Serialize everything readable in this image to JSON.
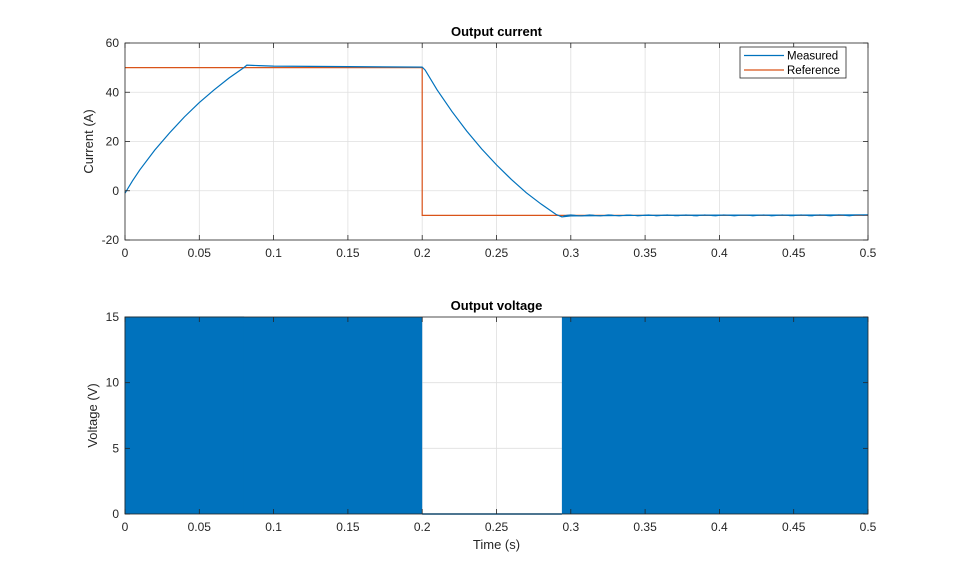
{
  "chart_data": [
    {
      "type": "line",
      "title": "Output current",
      "xlabel": "",
      "ylabel": "Current (A)",
      "xlim": [
        0,
        0.5
      ],
      "ylim": [
        -20,
        60
      ],
      "xticks": [
        0,
        0.05,
        0.1,
        0.15,
        0.2,
        0.25,
        0.3,
        0.35,
        0.4,
        0.45,
        0.5
      ],
      "xtick_labels": [
        "0",
        "0.05",
        "0.1",
        "0.15",
        "0.2",
        "0.25",
        "0.3",
        "0.35",
        "0.4",
        "0.45",
        "0.5"
      ],
      "yticks": [
        -20,
        0,
        20,
        40,
        60
      ],
      "ytick_labels": [
        "-20",
        "0",
        "20",
        "40",
        "60"
      ],
      "grid": true,
      "legend": "top-right",
      "series": [
        {
          "name": "Measured",
          "color": "#0072BD",
          "x": [
            0,
            0.005,
            0.01,
            0.02,
            0.03,
            0.04,
            0.05,
            0.06,
            0.07,
            0.08,
            0.082,
            0.09,
            0.1,
            0.15,
            0.2,
            0.202,
            0.21,
            0.22,
            0.23,
            0.24,
            0.25,
            0.26,
            0.27,
            0.28,
            0.29,
            0.294,
            0.3,
            0.35,
            0.4,
            0.45,
            0.5
          ],
          "y": [
            -1,
            4,
            8.5,
            16.5,
            23.5,
            30,
            35.8,
            41,
            45.8,
            50,
            51,
            50.8,
            50.6,
            50.4,
            50.2,
            49,
            41,
            32.2,
            24.2,
            17,
            10.5,
            4.6,
            -0.8,
            -5.4,
            -9.6,
            -10.6,
            -10.2,
            -10,
            -9.9,
            -9.9,
            -9.8
          ]
        },
        {
          "name": "Reference",
          "color": "#D95319",
          "x": [
            0,
            0.2,
            0.2,
            0.5
          ],
          "y": [
            50,
            50,
            -10,
            -10
          ]
        }
      ]
    },
    {
      "type": "area",
      "title": "Output voltage",
      "xlabel": "Time (s)",
      "ylabel": "Voltage (V)",
      "xlim": [
        0,
        0.5
      ],
      "ylim": [
        0,
        15
      ],
      "xticks": [
        0,
        0.05,
        0.1,
        0.15,
        0.2,
        0.25,
        0.3,
        0.35,
        0.4,
        0.45,
        0.5
      ],
      "xtick_labels": [
        "0",
        "0.05",
        "0.1",
        "0.15",
        "0.2",
        "0.25",
        "0.3",
        "0.35",
        "0.4",
        "0.45",
        "0.5"
      ],
      "yticks": [
        0,
        5,
        10,
        15
      ],
      "ytick_labels": [
        "0",
        "5",
        "10",
        "15"
      ],
      "grid": true,
      "description_of_signal": "PWM switching between 0 and 15 V",
      "series": [
        {
          "color": "#0072BD",
          "segments": [
            {
              "x_start": 0,
              "x_end": 0.08,
              "pattern": "sparse switching",
              "low": 0,
              "high": 15
            },
            {
              "x_start": 0.08,
              "x_end": 0.2,
              "pattern": "dense switching",
              "low": 0,
              "high": 15
            },
            {
              "x_start": 0.2,
              "x_end": 0.294,
              "pattern": "off",
              "low": 0,
              "high": 0
            },
            {
              "x_start": 0.294,
              "x_end": 0.5,
              "pattern": "dense switching",
              "low": 0,
              "high": 15
            }
          ]
        }
      ]
    }
  ]
}
